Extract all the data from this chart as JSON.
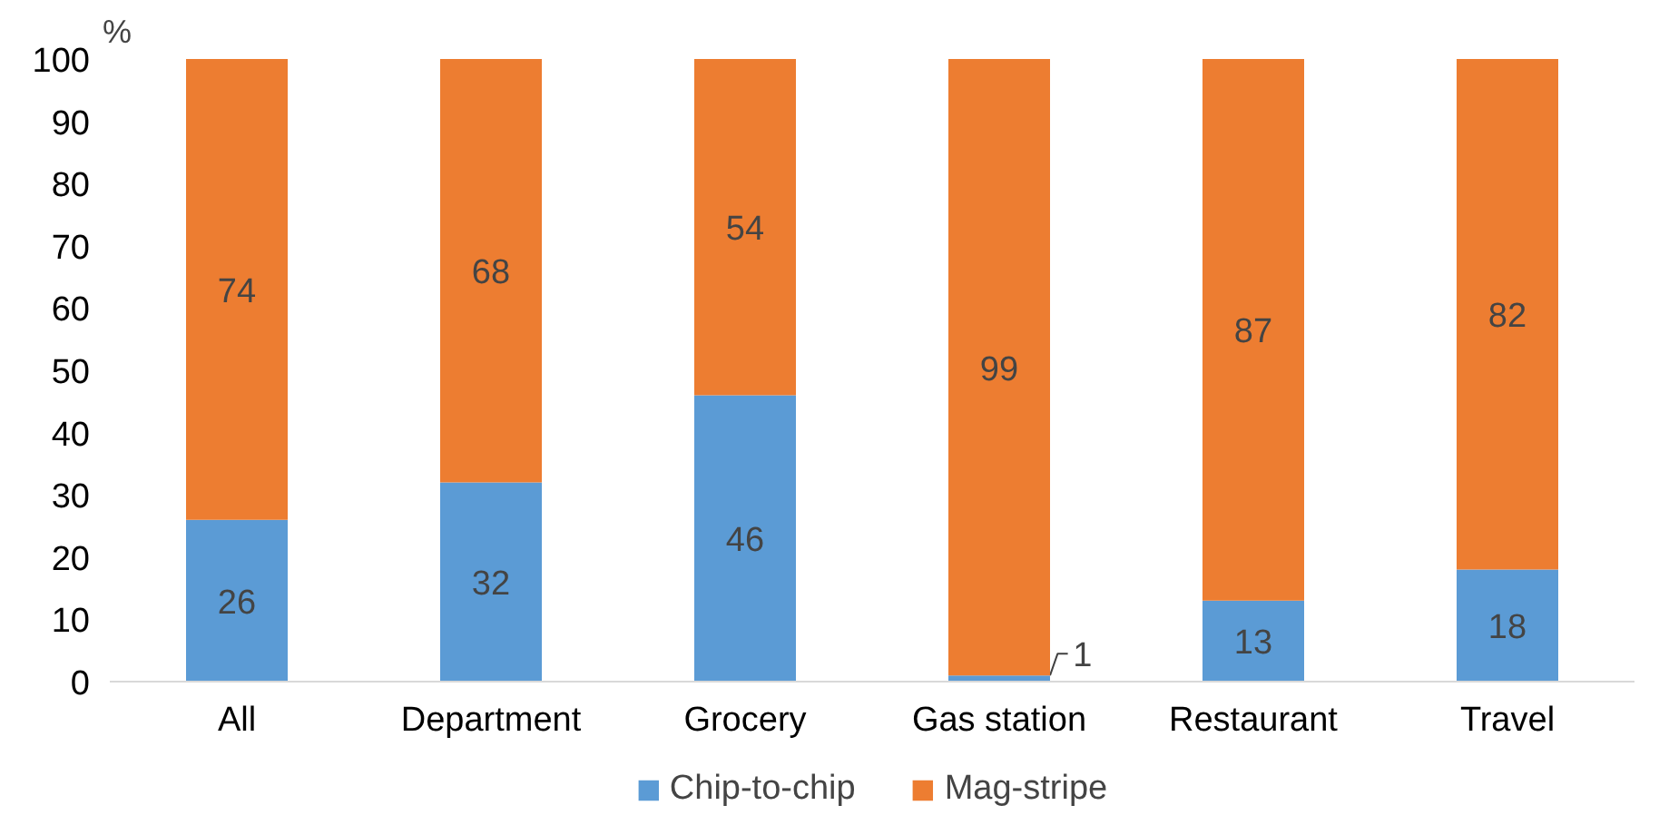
{
  "chart_data": {
    "type": "bar",
    "stacked": true,
    "ylabel": "%",
    "categories": [
      "All",
      "Department",
      "Grocery",
      "Gas station",
      "Restaurant",
      "Travel"
    ],
    "series": [
      {
        "name": "Chip-to-chip",
        "color": "#5b9bd5",
        "values": [
          26,
          32,
          46,
          1,
          13,
          18
        ]
      },
      {
        "name": "Mag-stripe",
        "color": "#ed7d31",
        "values": [
          74,
          68,
          54,
          99,
          87,
          82
        ]
      }
    ],
    "ylim": [
      0,
      100
    ],
    "yticks": [
      0,
      10,
      20,
      30,
      40,
      50,
      60,
      70,
      80,
      90,
      100
    ],
    "data_labels": true,
    "grid": false,
    "legend": "bottom"
  }
}
